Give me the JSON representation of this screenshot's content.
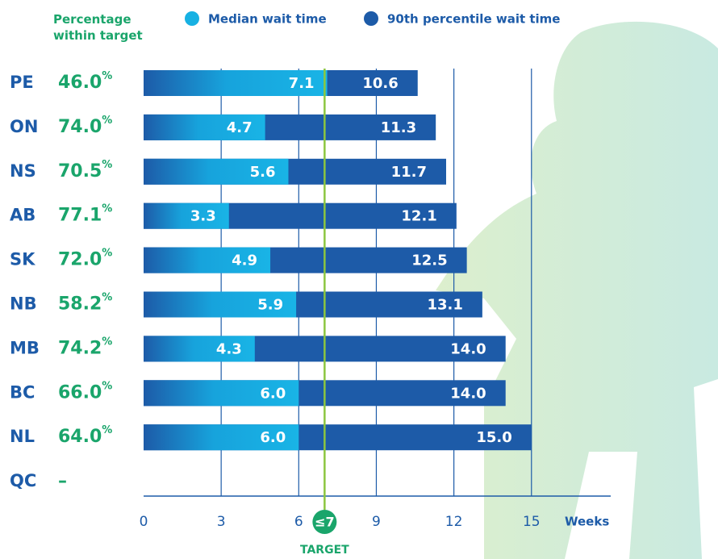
{
  "chart_data": {
    "type": "bar",
    "orientation": "horizontal",
    "categories": [
      "PE",
      "ON",
      "NS",
      "AB",
      "SK",
      "NB",
      "MB",
      "BC",
      "NL",
      "QC"
    ],
    "within_target": {
      "name": [
        "Percentage",
        "within target"
      ],
      "unit": "%",
      "values": [
        46.0,
        74.0,
        70.5,
        77.1,
        72.0,
        58.2,
        74.2,
        66.0,
        64.0,
        null
      ],
      "value_labels": [
        "46.0",
        "74.0",
        "70.5",
        "77.1",
        "72.0",
        "58.2",
        "74.2",
        "66.0",
        "64.0",
        "–"
      ]
    },
    "series": [
      {
        "name": "90th percentile wait time",
        "color": "#1d5ba8",
        "values": [
          10.6,
          11.3,
          11.7,
          12.1,
          12.5,
          13.1,
          14.0,
          14.0,
          15.0,
          null
        ],
        "value_labels": [
          "10.6",
          "11.3",
          "11.7",
          "12.1",
          "12.5",
          "13.1",
          "14.0",
          "14.0",
          "15.0",
          null
        ]
      },
      {
        "name": "Median wait time",
        "color": "#17b1e3",
        "values": [
          7.1,
          4.7,
          5.6,
          3.3,
          4.9,
          5.9,
          4.3,
          6.0,
          6.0,
          null
        ],
        "value_labels": [
          "7.1",
          "4.7",
          "5.6",
          "3.3",
          "4.9",
          "5.9",
          "4.3",
          "6.0",
          "6.0",
          null
        ]
      }
    ],
    "legend_order": [
      1,
      0
    ],
    "xlabel": "Weeks",
    "xlim": [
      0,
      15.6
    ],
    "xticks": [
      0,
      3,
      6,
      9,
      12,
      15
    ],
    "target": {
      "value": 7,
      "label": "≤7",
      "caption": "TARGET"
    },
    "grid": true
  }
}
